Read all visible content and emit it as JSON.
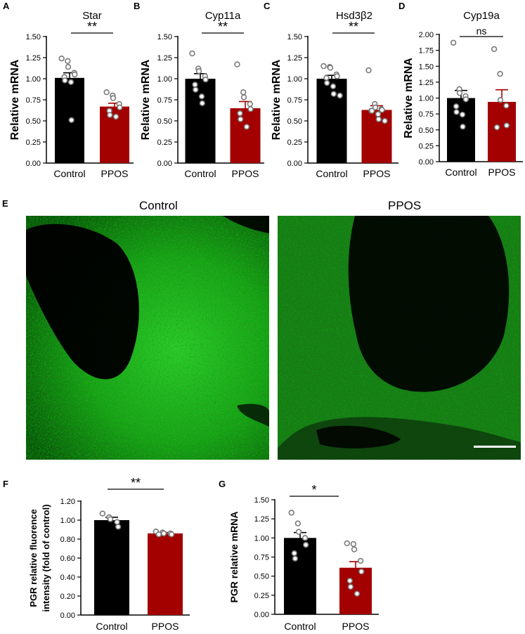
{
  "panels": {
    "A": "A",
    "B": "B",
    "C": "C",
    "D": "D",
    "E": "E",
    "F": "F",
    "G": "G"
  },
  "micrographs": {
    "control_label": "Control",
    "ppos_label": "PPOS",
    "colors": {
      "bright": "#3fd23a",
      "mid": "#22a020",
      "dark": "#0a2a0a",
      "black": "#000000"
    }
  },
  "colors": {
    "control_bar": "#000000",
    "ppos_bar": "#a30000",
    "point_fill": "#ffffff",
    "point_stroke": "#7a7a7a"
  },
  "chart_data": [
    {
      "id": "A",
      "type": "bar",
      "title": "Star",
      "ylabel": "Relative mRNA",
      "xlabel": "",
      "categories": [
        "Control",
        "PPOS"
      ],
      "series": [
        {
          "values": [
            1.01,
            0.67
          ],
          "errors": [
            0.06,
            0.04
          ]
        }
      ],
      "points": [
        [
          1.24,
          1.21,
          1.14,
          1.07,
          1.05,
          1.02,
          0.98,
          0.96,
          0.51
        ],
        [
          0.84,
          0.8,
          0.77,
          0.7,
          0.66,
          0.62,
          0.57,
          0.55
        ]
      ],
      "ylim": [
        0,
        1.5
      ],
      "yticks": [
        "0.00",
        "0.25",
        "0.50",
        "0.75",
        "1.00",
        "1.25",
        "1.50"
      ],
      "significance": "**"
    },
    {
      "id": "B",
      "type": "bar",
      "title": "Cyp11a",
      "ylabel": "Relative mRNA",
      "xlabel": "",
      "categories": [
        "Control",
        "PPOS"
      ],
      "series": [
        {
          "values": [
            1.0,
            0.65
          ],
          "errors": [
            0.06,
            0.08
          ]
        }
      ],
      "points": [
        [
          1.3,
          1.12,
          1.09,
          1.03,
          0.99,
          0.93,
          0.87,
          0.79,
          0.71
        ],
        [
          1.17,
          0.84,
          0.78,
          0.7,
          0.64,
          0.59,
          0.52,
          0.43
        ]
      ],
      "ylim": [
        0,
        1.5
      ],
      "yticks": [
        "0.00",
        "0.25",
        "0.50",
        "0.75",
        "1.00",
        "1.25",
        "1.50"
      ],
      "significance": "**"
    },
    {
      "id": "C",
      "type": "bar",
      "title": "Hsd3β2",
      "ylabel": "Relative mRNA",
      "xlabel": "",
      "categories": [
        "Control",
        "PPOS"
      ],
      "series": [
        {
          "values": [
            1.0,
            0.63
          ],
          "errors": [
            0.04,
            0.05
          ]
        }
      ],
      "points": [
        [
          1.15,
          1.14,
          1.13,
          1.05,
          1.03,
          1.01,
          0.95,
          0.91,
          0.82,
          0.8
        ],
        [
          1.1,
          0.7,
          0.66,
          0.64,
          0.63,
          0.62,
          0.62,
          0.58,
          0.52,
          0.5
        ]
      ],
      "ylim": [
        0,
        1.5
      ],
      "yticks": [
        "0.00",
        "0.25",
        "0.50",
        "0.75",
        "1.00",
        "1.25",
        "1.50"
      ],
      "significance": "**"
    },
    {
      "id": "D",
      "type": "bar",
      "title": "Cyp19a",
      "ylabel": "Relative mRNA",
      "xlabel": "",
      "categories": [
        "Control",
        "PPOS"
      ],
      "series": [
        {
          "values": [
            1.0,
            0.94
          ],
          "errors": [
            0.12,
            0.19
          ]
        }
      ],
      "points": [
        [
          1.87,
          1.14,
          1.08,
          1.03,
          0.98,
          0.87,
          0.78,
          0.74,
          0.55
        ],
        [
          1.77,
          1.38,
          0.97,
          0.88,
          0.57,
          0.54
        ]
      ],
      "ylim": [
        0,
        2.0
      ],
      "yticks": [
        "0.00",
        "0.25",
        "0.50",
        "0.75",
        "1.00",
        "1.25",
        "1.50",
        "1.75",
        "2.00"
      ],
      "significance": "ns"
    },
    {
      "id": "F",
      "type": "bar",
      "title": "",
      "ylabel": "PGR  relative fluorence intensity (fold of control)",
      "xlabel": "",
      "ylabel_lines": [
        "PGR  relative fluorence",
        "intensity (fold of control)"
      ],
      "categories": [
        "Control",
        "PPOS"
      ],
      "series": [
        {
          "values": [
            1.0,
            0.86
          ],
          "errors": [
            0.03,
            0.01
          ]
        }
      ],
      "points": [
        [
          1.07,
          1.03,
          1.01,
          0.98,
          0.93
        ],
        [
          0.88,
          0.87,
          0.86,
          0.86,
          0.85,
          0.85
        ]
      ],
      "ylim": [
        0,
        1.2
      ],
      "yticks": [
        "0.00",
        "0.20",
        "0.40",
        "0.60",
        "0.80",
        "1.00",
        "1.20"
      ],
      "significance": "**"
    },
    {
      "id": "G",
      "type": "bar",
      "title": "",
      "ylabel": "PGR  relative mRNA",
      "xlabel": "",
      "categories": [
        "Control",
        "PPOS"
      ],
      "series": [
        {
          "values": [
            1.0,
            0.61
          ],
          "errors": [
            0.07,
            0.08
          ]
        }
      ],
      "points": [
        [
          1.33,
          1.19,
          1.08,
          1.0,
          0.91,
          0.8,
          0.73
        ],
        [
          0.93,
          0.92,
          0.85,
          0.7,
          0.56,
          0.44,
          0.36,
          0.27
        ]
      ],
      "ylim": [
        0,
        1.5
      ],
      "yticks": [
        "0.00",
        "0.25",
        "0.50",
        "0.75",
        "1.00",
        "1.25",
        "1.50"
      ],
      "significance": "*"
    }
  ]
}
